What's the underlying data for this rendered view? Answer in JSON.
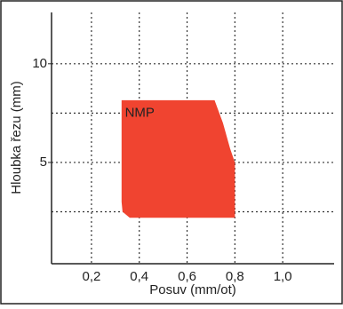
{
  "chart_data": {
    "type": "polygon",
    "x_label": "Posuv (mm/ot)",
    "y_label": "Hloubka řezu (mm)",
    "xlim": [
      0.033,
      1.215
    ],
    "ylim": [
      -0.13,
      12.6
    ],
    "xticks": [
      {
        "value": 0.2,
        "label": "0,2"
      },
      {
        "value": 0.4,
        "label": "0,4"
      },
      {
        "value": 0.6,
        "label": "0,6"
      },
      {
        "value": 0.8,
        "label": "0,8"
      },
      {
        "value": 1.0,
        "label": "1,0"
      }
    ],
    "yticks": [
      5,
      10
    ],
    "ygrid": [
      2.5,
      5,
      7.5,
      10
    ],
    "grid": true,
    "series": [
      {
        "name": "NMP",
        "color": "#f04430",
        "x": [
          0.326,
          0.715,
          0.75,
          0.78,
          0.8,
          0.8,
          0.36,
          0.33,
          0.326
        ],
        "values": [
          8.15,
          8.15,
          7.0,
          5.7,
          5.0,
          2.2,
          2.2,
          2.5,
          3.0
        ],
        "label_x": 0.34,
        "label_y": 7.5
      }
    ]
  }
}
